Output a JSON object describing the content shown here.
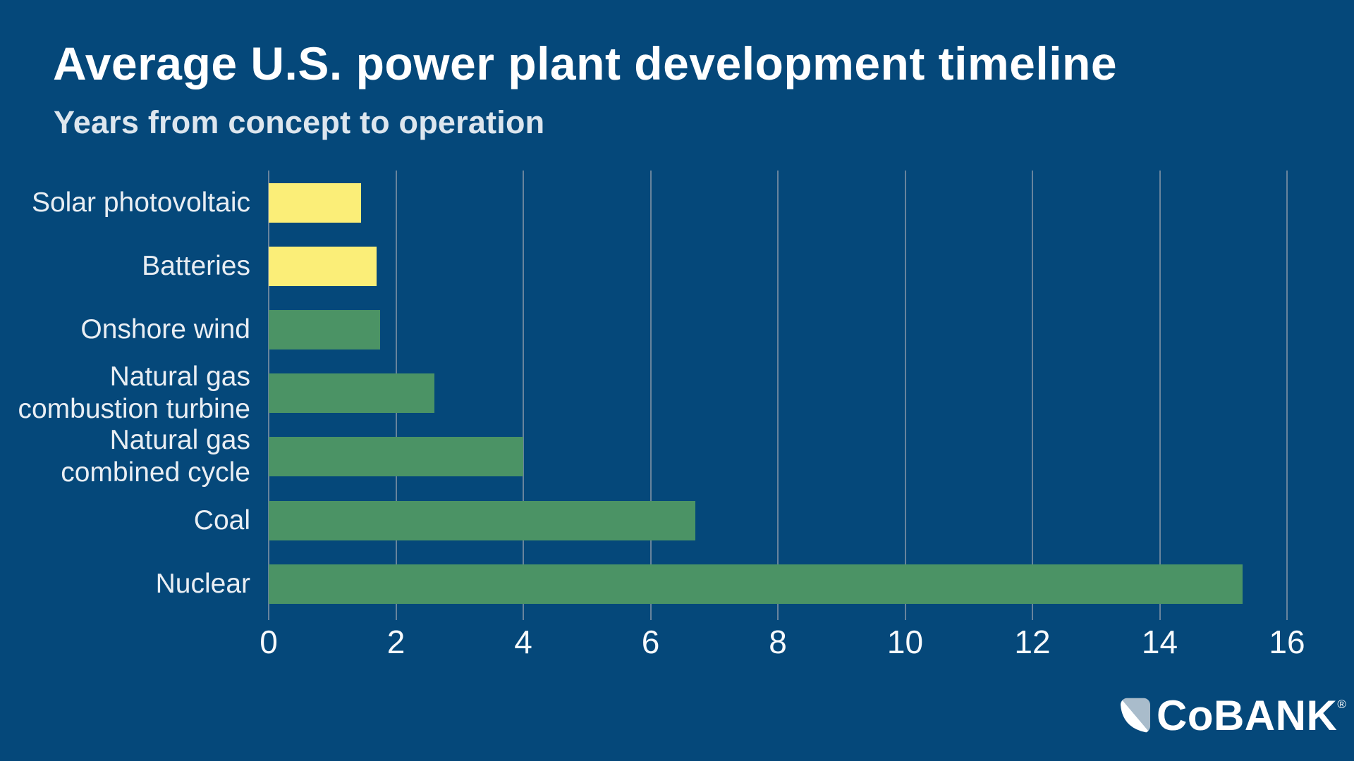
{
  "header": {
    "title": "Average U.S. power plant development timeline",
    "subtitle": "Years from concept to operation"
  },
  "chart_data": {
    "type": "bar",
    "orientation": "horizontal",
    "title": "Average U.S. power plant development timeline",
    "subtitle": "Years from concept to operation",
    "categories": [
      "Solar photovoltaic",
      "Batteries",
      "Onshore wind",
      "Natural gas\ncombustion turbine",
      "Natural gas\ncombined cycle",
      "Coal",
      "Nuclear"
    ],
    "values": [
      1.45,
      1.7,
      1.75,
      2.6,
      4.0,
      6.7,
      15.3
    ],
    "bar_colors": [
      "#FBEE78",
      "#FBEE78",
      "#4B9365",
      "#4B9365",
      "#4B9365",
      "#4B9365",
      "#4B9365"
    ],
    "xlabel": "",
    "ylabel": "",
    "xlim": [
      0,
      16
    ],
    "xticks": [
      0,
      2,
      4,
      6,
      8,
      10,
      12,
      14,
      16
    ],
    "grid": true,
    "legend": "none",
    "units": "years"
  },
  "colors": {
    "background": "#05487A",
    "bar_yellow": "#FBEE78",
    "bar_green": "#4B9365",
    "gridline": "#7A8FA3",
    "label_text": "#E9EEF3",
    "title_text": "#FFFFFF",
    "logo_light": "#A9BCCB"
  },
  "logo": {
    "text": "CoBANK",
    "registered": "®"
  }
}
